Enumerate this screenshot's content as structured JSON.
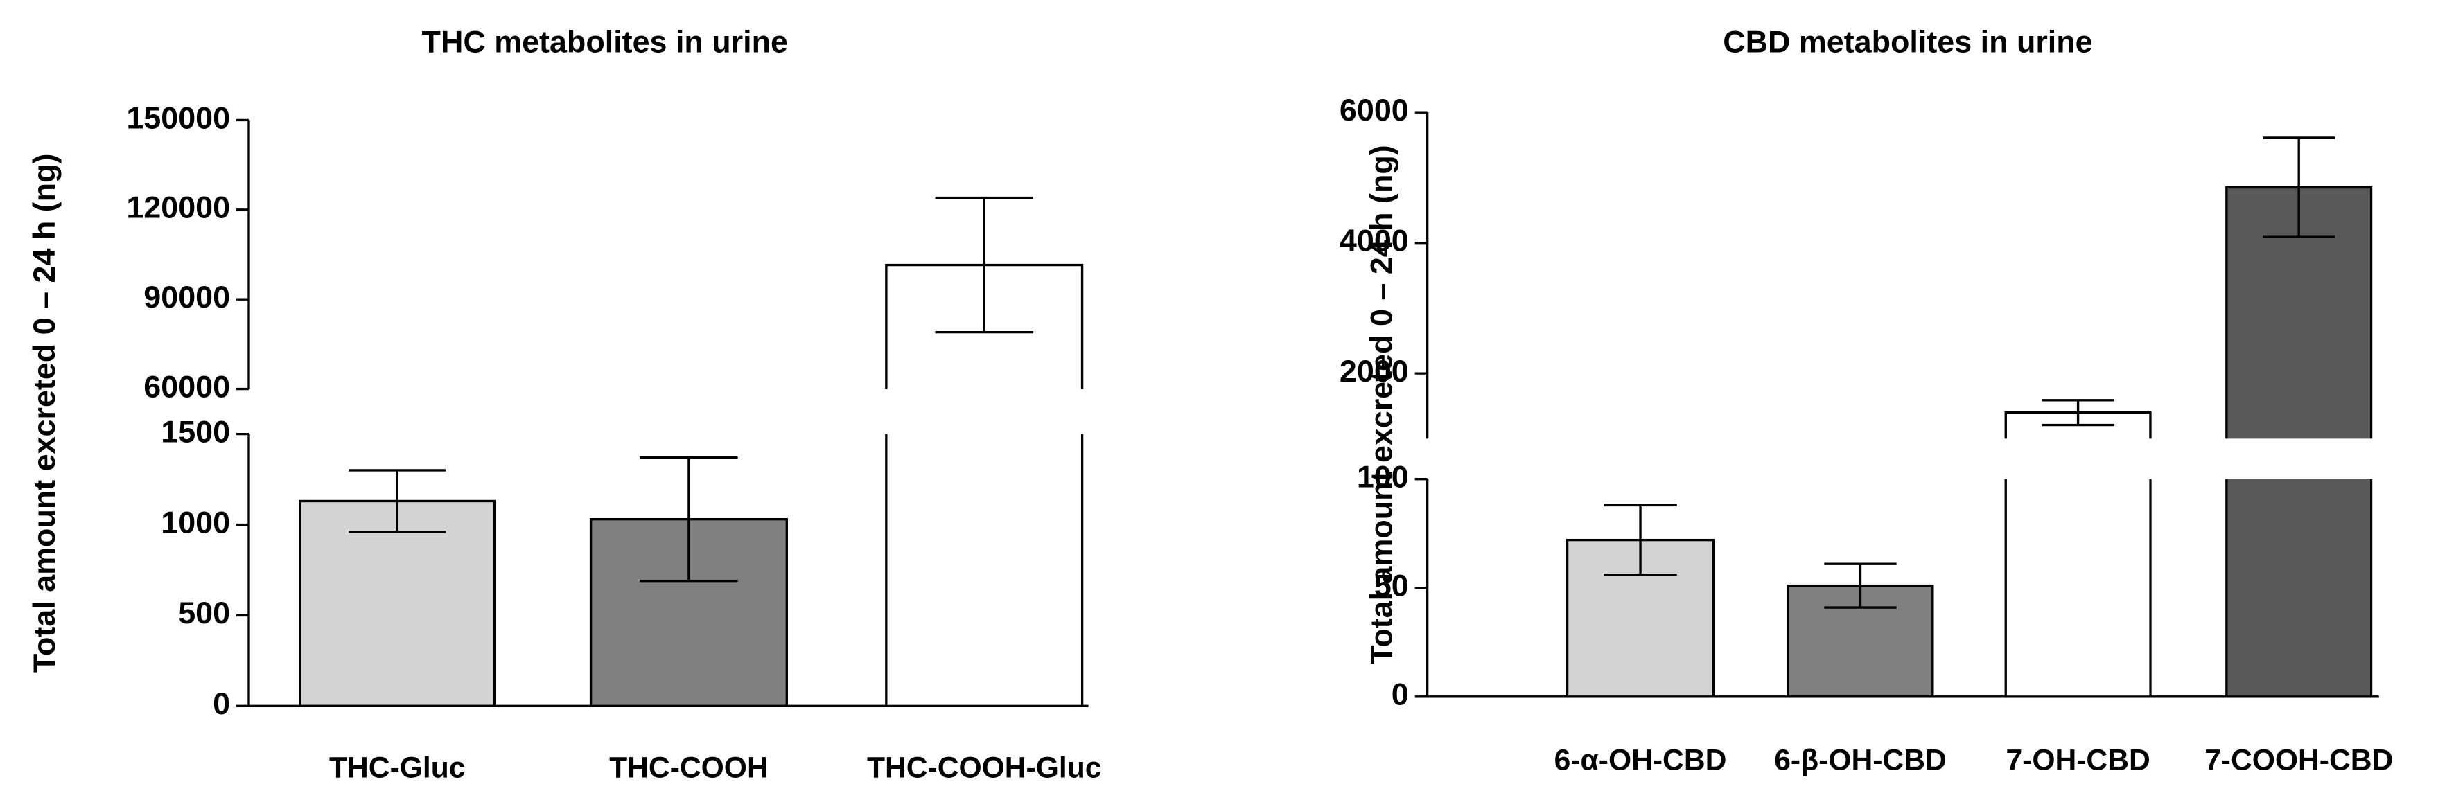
{
  "chart_data": [
    {
      "type": "bar",
      "title": "THC metabolites in urine",
      "ylabel": "Total amount excreted 0 – 24 h (ng)",
      "categories": [
        "THC-Gluc",
        "THC-COOH",
        "THC-COOH-Gluc"
      ],
      "values": [
        1130,
        1030,
        101500
      ],
      "errors": [
        170,
        340,
        22500
      ],
      "colors": [
        "#d3d3d3",
        "#808080",
        "#ffffff"
      ],
      "y_segments": [
        {
          "ylim": [
            0,
            1500
          ],
          "yticks": [
            0,
            500,
            1000,
            1500
          ]
        },
        {
          "ylim": [
            60000,
            150000
          ],
          "yticks": [
            60000,
            90000,
            120000,
            150000
          ]
        }
      ]
    },
    {
      "type": "bar",
      "title": "CBD metabolites in urine",
      "ylabel": "Total amount excreted 0 – 24 h (ng)",
      "categories": [
        "6-α-OH-CBD",
        "6-β-OH-CBD",
        "7-OH-CBD",
        "7-COOH-CBD"
      ],
      "values": [
        72,
        51,
        1400,
        4850
      ],
      "errors": [
        16,
        10,
        190,
        760
      ],
      "colors": [
        "#d3d3d3",
        "#808080",
        "#ffffff",
        "#595959"
      ],
      "y_segments": [
        {
          "ylim": [
            0,
            100
          ],
          "yticks": [
            0,
            50,
            100
          ]
        },
        {
          "ylim": [
            1000,
            6000
          ],
          "yticks": [
            2000,
            4000,
            6000
          ]
        }
      ]
    }
  ]
}
